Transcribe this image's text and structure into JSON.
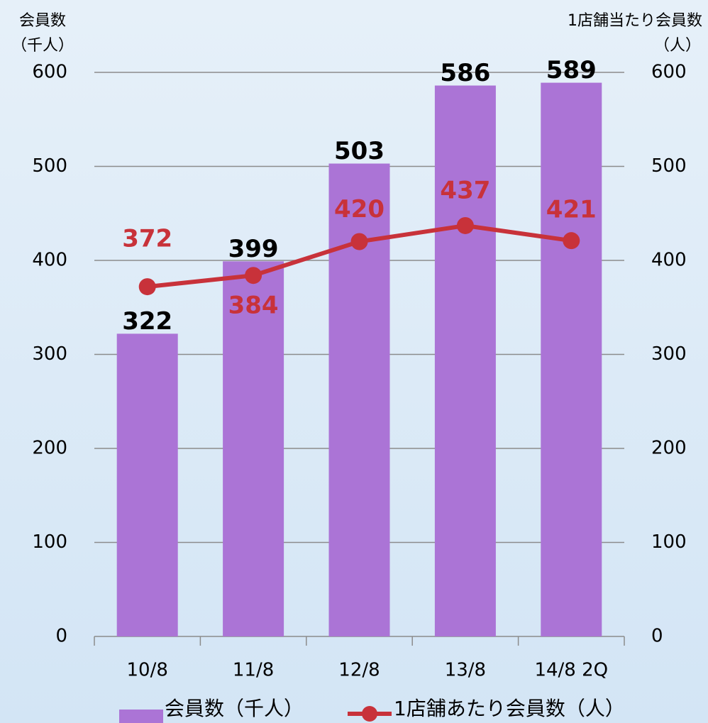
{
  "chart_data": {
    "type": "bar",
    "categories": [
      "10/8",
      "11/8",
      "12/8",
      "13/8",
      "14/8 2Q"
    ],
    "series": [
      {
        "name": "会員数（千人）",
        "type": "bar",
        "color": "#ab74d6",
        "values": [
          322,
          399,
          503,
          586,
          589
        ]
      },
      {
        "name": "1店舗あたり会員数（人）",
        "type": "line",
        "axis": "y2",
        "color": "#c8323a",
        "values": [
          372,
          384,
          420,
          437,
          421
        ]
      }
    ],
    "y_label": [
      "会員数",
      "（千人）"
    ],
    "y2_label": [
      "1店舗当たり会員数",
      "（人）"
    ],
    "ylim": [
      0,
      600
    ],
    "yticks": [
      0,
      100,
      200,
      300,
      400,
      500,
      600
    ],
    "y2lim": [
      0,
      600
    ],
    "y2ticks": [
      0,
      100,
      200,
      300,
      400,
      500,
      600
    ],
    "grid": true,
    "legend": "bottom"
  }
}
